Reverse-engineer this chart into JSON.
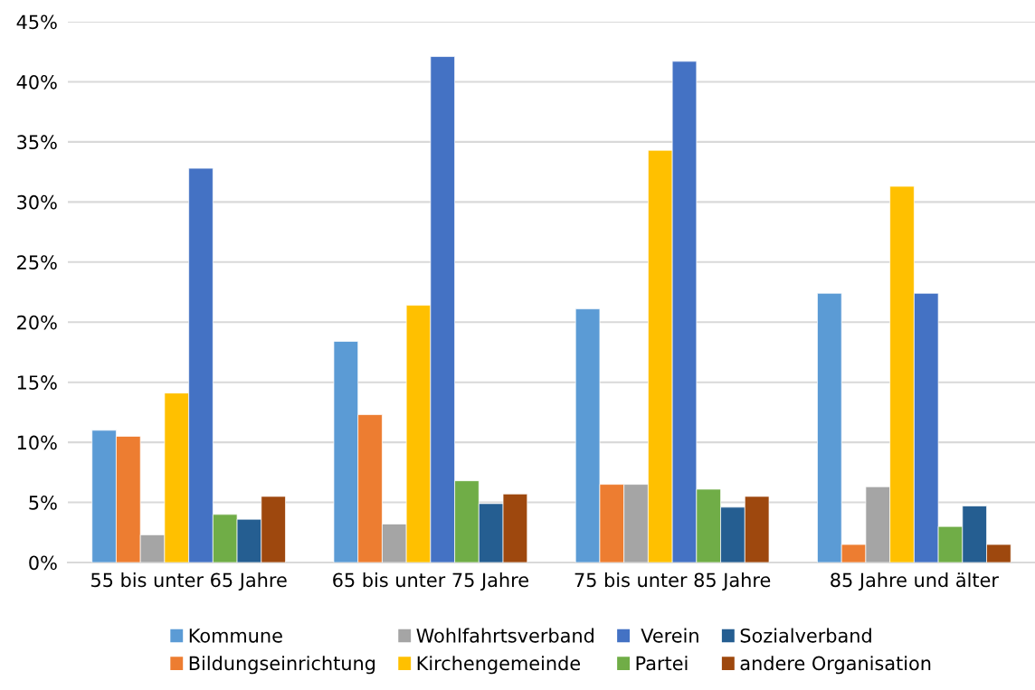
{
  "chart_data": {
    "type": "bar",
    "categories": [
      "55 bis unter 65 Jahre",
      "65 bis unter 75 Jahre",
      "75 bis unter 85 Jahre",
      "85 Jahre und älter"
    ],
    "series": [
      {
        "name": "Kommune",
        "color": "#5b9bd5",
        "values": [
          11.0,
          18.4,
          21.1,
          22.4
        ]
      },
      {
        "name": "Bildungseinrichtung",
        "color": "#ed7d31",
        "values": [
          10.5,
          12.3,
          6.5,
          1.5
        ]
      },
      {
        "name": "Wohlfahrtsverband",
        "color": "#a5a5a5",
        "values": [
          2.3,
          3.2,
          6.5,
          6.3
        ]
      },
      {
        "name": "Kirchengemeinde",
        "color": "#ffc000",
        "values": [
          14.1,
          21.4,
          34.3,
          31.3
        ]
      },
      {
        "name": " Verein",
        "color": "#4472c4",
        "values": [
          32.8,
          42.1,
          41.7,
          22.4
        ]
      },
      {
        "name": "Partei",
        "color": "#70ad47",
        "values": [
          4.0,
          6.8,
          6.1,
          3.0
        ]
      },
      {
        "name": "Sozialverband",
        "color": "#255e91",
        "values": [
          3.6,
          4.9,
          4.6,
          4.7
        ]
      },
      {
        "name": "andere Organisation",
        "color": "#9e480e",
        "values": [
          5.5,
          5.7,
          5.5,
          1.5
        ]
      }
    ],
    "ylim": [
      0,
      45
    ],
    "yticks": [
      {
        "value": 0,
        "label": "0%"
      },
      {
        "value": 5,
        "label": "5%"
      },
      {
        "value": 10,
        "label": "10%"
      },
      {
        "value": 15,
        "label": "15%"
      },
      {
        "value": 20,
        "label": "20%"
      },
      {
        "value": 25,
        "label": "25%"
      },
      {
        "value": 30,
        "label": "30%"
      },
      {
        "value": 35,
        "label": "35%"
      },
      {
        "value": 40,
        "label": "40%"
      },
      {
        "value": 45,
        "label": "45%"
      }
    ],
    "grid": "y",
    "legend": "bottom"
  }
}
